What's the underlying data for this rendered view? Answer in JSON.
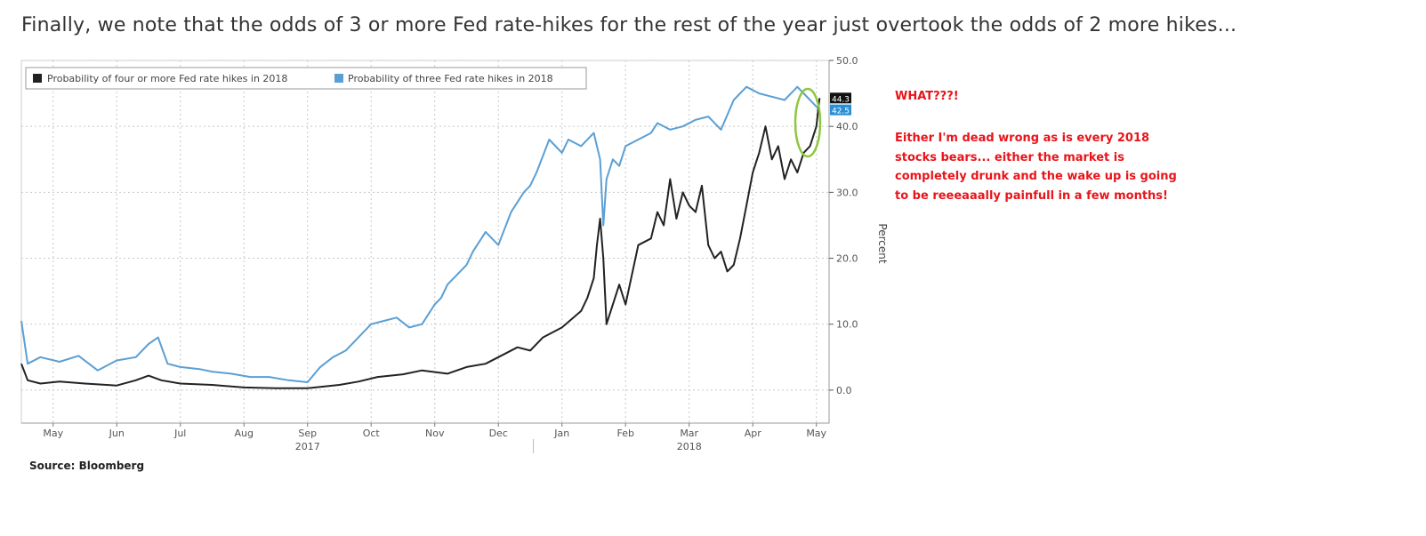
{
  "headline": "Finally, we note that the odds of 3 or more Fed rate-hikes for the rest of the year just overtook the odds of 2 more hikes...",
  "annotation": {
    "title": "WHAT???!",
    "body": "Either I'm dead wrong as is every 2018 stocks bears... either the market is completely drunk and the wake up is going to be reeeaaally painfull in a few months!"
  },
  "source": "Source: Bloomberg",
  "colors": {
    "black_series": "#222222",
    "blue_series": "#5a9fd4",
    "annotation": "#e8141a",
    "circle": "#8dc63f"
  },
  "chart_data": {
    "type": "line",
    "title": "",
    "ylabel": "Percent",
    "ylim": [
      -5,
      50
    ],
    "yticks": [
      0,
      10,
      20,
      30,
      40,
      50
    ],
    "ytick_labels": [
      "0.0",
      "10.0",
      "20.0",
      "30.0",
      "40.0",
      "50.0"
    ],
    "xlim": [
      0,
      12.7
    ],
    "month_ticks": [
      {
        "x": 0.5,
        "label": "May"
      },
      {
        "x": 1.5,
        "label": "Jun"
      },
      {
        "x": 2.5,
        "label": "Jul"
      },
      {
        "x": 3.5,
        "label": "Aug"
      },
      {
        "x": 4.5,
        "label": "Sep"
      },
      {
        "x": 5.5,
        "label": "Oct"
      },
      {
        "x": 6.5,
        "label": "Nov"
      },
      {
        "x": 7.5,
        "label": "Dec"
      },
      {
        "x": 8.5,
        "label": "Jan"
      },
      {
        "x": 9.5,
        "label": "Feb"
      },
      {
        "x": 10.5,
        "label": "Mar"
      },
      {
        "x": 11.5,
        "label": "Apr"
      },
      {
        "x": 12.5,
        "label": "May"
      }
    ],
    "year_labels": [
      {
        "x": 4.5,
        "label": "2017"
      },
      {
        "x": 10.5,
        "label": "2018"
      }
    ],
    "last_values": [
      {
        "series": 0,
        "label": "44.3"
      },
      {
        "series": 1,
        "label": "42.5"
      }
    ],
    "legend_position": "top-left",
    "series": [
      {
        "name": "Probability of four or more Fed rate hikes in 2018",
        "color": "#222222",
        "x": [
          0,
          0.1,
          0.3,
          0.6,
          1.0,
          1.5,
          1.8,
          2.0,
          2.2,
          2.5,
          3.0,
          3.5,
          4.0,
          4.5,
          5.0,
          5.3,
          5.6,
          6.0,
          6.3,
          6.7,
          7.0,
          7.3,
          7.5,
          7.8,
          8.0,
          8.2,
          8.5,
          8.8,
          8.9,
          9.0,
          9.05,
          9.1,
          9.15,
          9.2,
          9.4,
          9.5,
          9.7,
          9.9,
          10.0,
          10.1,
          10.2,
          10.3,
          10.4,
          10.5,
          10.6,
          10.7,
          10.8,
          10.9,
          11.0,
          11.1,
          11.2,
          11.3,
          11.4,
          11.5,
          11.6,
          11.7,
          11.8,
          11.9,
          12.0,
          12.1,
          12.2,
          12.3,
          12.4,
          12.5,
          12.55
        ],
        "y": [
          4,
          1.5,
          1.0,
          1.3,
          1.0,
          0.7,
          1.5,
          2.2,
          1.5,
          1.0,
          0.8,
          0.4,
          0.3,
          0.3,
          0.8,
          1.3,
          2.0,
          2.4,
          3.0,
          2.5,
          3.5,
          4.0,
          5.0,
          6.5,
          6.0,
          8.0,
          9.5,
          12.0,
          14.0,
          17.0,
          22.0,
          26.0,
          20.0,
          10.0,
          16.0,
          13.0,
          22.0,
          23.0,
          27.0,
          25.0,
          32.0,
          26.0,
          30.0,
          28.0,
          27.0,
          31.0,
          22.0,
          20.0,
          21.0,
          18.0,
          19.0,
          23.0,
          28.0,
          33.0,
          36.0,
          40.0,
          35.0,
          37.0,
          32.0,
          35.0,
          33.0,
          36.0,
          37.0,
          40.0,
          44.3
        ]
      },
      {
        "name": "Probability of three Fed rate hikes in 2018",
        "color": "#5a9fd4",
        "x": [
          0,
          0.1,
          0.3,
          0.6,
          0.9,
          1.2,
          1.5,
          1.8,
          2.0,
          2.15,
          2.3,
          2.5,
          2.8,
          3.0,
          3.3,
          3.6,
          3.9,
          4.2,
          4.5,
          4.7,
          4.9,
          5.1,
          5.3,
          5.5,
          5.7,
          5.9,
          6.1,
          6.3,
          6.5,
          6.6,
          6.7,
          6.9,
          7.0,
          7.1,
          7.3,
          7.5,
          7.7,
          7.9,
          8.0,
          8.1,
          8.3,
          8.5,
          8.6,
          8.8,
          9.0,
          9.1,
          9.15,
          9.2,
          9.3,
          9.4,
          9.5,
          9.7,
          9.9,
          10.0,
          10.2,
          10.4,
          10.6,
          10.8,
          11.0,
          11.2,
          11.4,
          11.6,
          11.8,
          12.0,
          12.2,
          12.4,
          12.5,
          12.55
        ],
        "y": [
          10.5,
          4.0,
          5.0,
          4.3,
          5.2,
          3.0,
          4.5,
          5.0,
          7.0,
          8.0,
          4.0,
          3.5,
          3.2,
          2.8,
          2.5,
          2.0,
          2.0,
          1.5,
          1.2,
          3.5,
          5.0,
          6.0,
          8.0,
          10.0,
          10.5,
          11.0,
          9.5,
          10.0,
          13.0,
          14.0,
          16.0,
          18.0,
          19.0,
          21.0,
          24.0,
          22.0,
          27.0,
          30.0,
          31.0,
          33.0,
          38.0,
          36.0,
          38.0,
          37.0,
          39.0,
          35.0,
          25.0,
          32.0,
          35.0,
          34.0,
          37.0,
          38.0,
          39.0,
          40.5,
          39.5,
          40.0,
          41.0,
          41.5,
          39.5,
          44.0,
          46.0,
          45.0,
          44.5,
          44.0,
          46.0,
          44.0,
          43.0,
          42.5
        ]
      }
    ]
  }
}
